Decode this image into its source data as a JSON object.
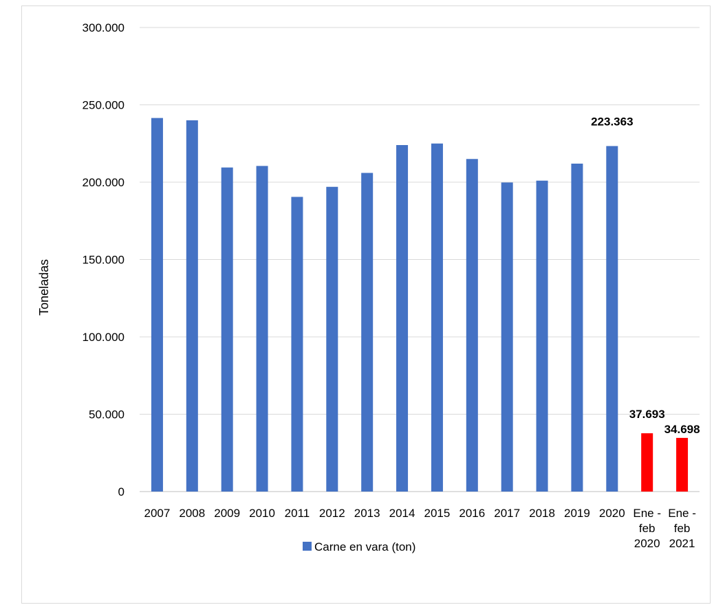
{
  "chart_data": {
    "type": "bar",
    "ylabel": "Toneladas",
    "ylim": [
      0,
      300000
    ],
    "yticks": [
      {
        "value": 0,
        "label": "0"
      },
      {
        "value": 50000,
        "label": "50.000"
      },
      {
        "value": 100000,
        "label": "100.000"
      },
      {
        "value": 150000,
        "label": "150.000"
      },
      {
        "value": 200000,
        "label": "200.000"
      },
      {
        "value": 250000,
        "label": "250.000"
      },
      {
        "value": 300000,
        "label": "300.000"
      }
    ],
    "grid": true,
    "categories": [
      [
        "2007"
      ],
      [
        "2008"
      ],
      [
        "2009"
      ],
      [
        "2010"
      ],
      [
        "2011"
      ],
      [
        "2012"
      ],
      [
        "2013"
      ],
      [
        "2014"
      ],
      [
        "2015"
      ],
      [
        "2016"
      ],
      [
        "2017"
      ],
      [
        "2018"
      ],
      [
        "2019"
      ],
      [
        "2020"
      ],
      [
        "Ene -",
        "feb",
        "2020"
      ],
      [
        "Ene -",
        "feb",
        "2021"
      ]
    ],
    "series": [
      {
        "name": "Carne en vara (ton)",
        "color": "#4472c4",
        "values": [
          241500,
          240000,
          209500,
          210500,
          190500,
          197000,
          206000,
          224000,
          225000,
          215000,
          199800,
          201000,
          212000,
          223363,
          37693,
          34698
        ]
      }
    ],
    "highlight_color": "#ff0000",
    "highlight_indices": [
      14,
      15
    ],
    "data_labels": [
      {
        "index": 13,
        "text": "223.363"
      },
      {
        "index": 14,
        "text": "37.693"
      },
      {
        "index": 15,
        "text": "34.698"
      }
    ],
    "legend_position": "bottom"
  }
}
